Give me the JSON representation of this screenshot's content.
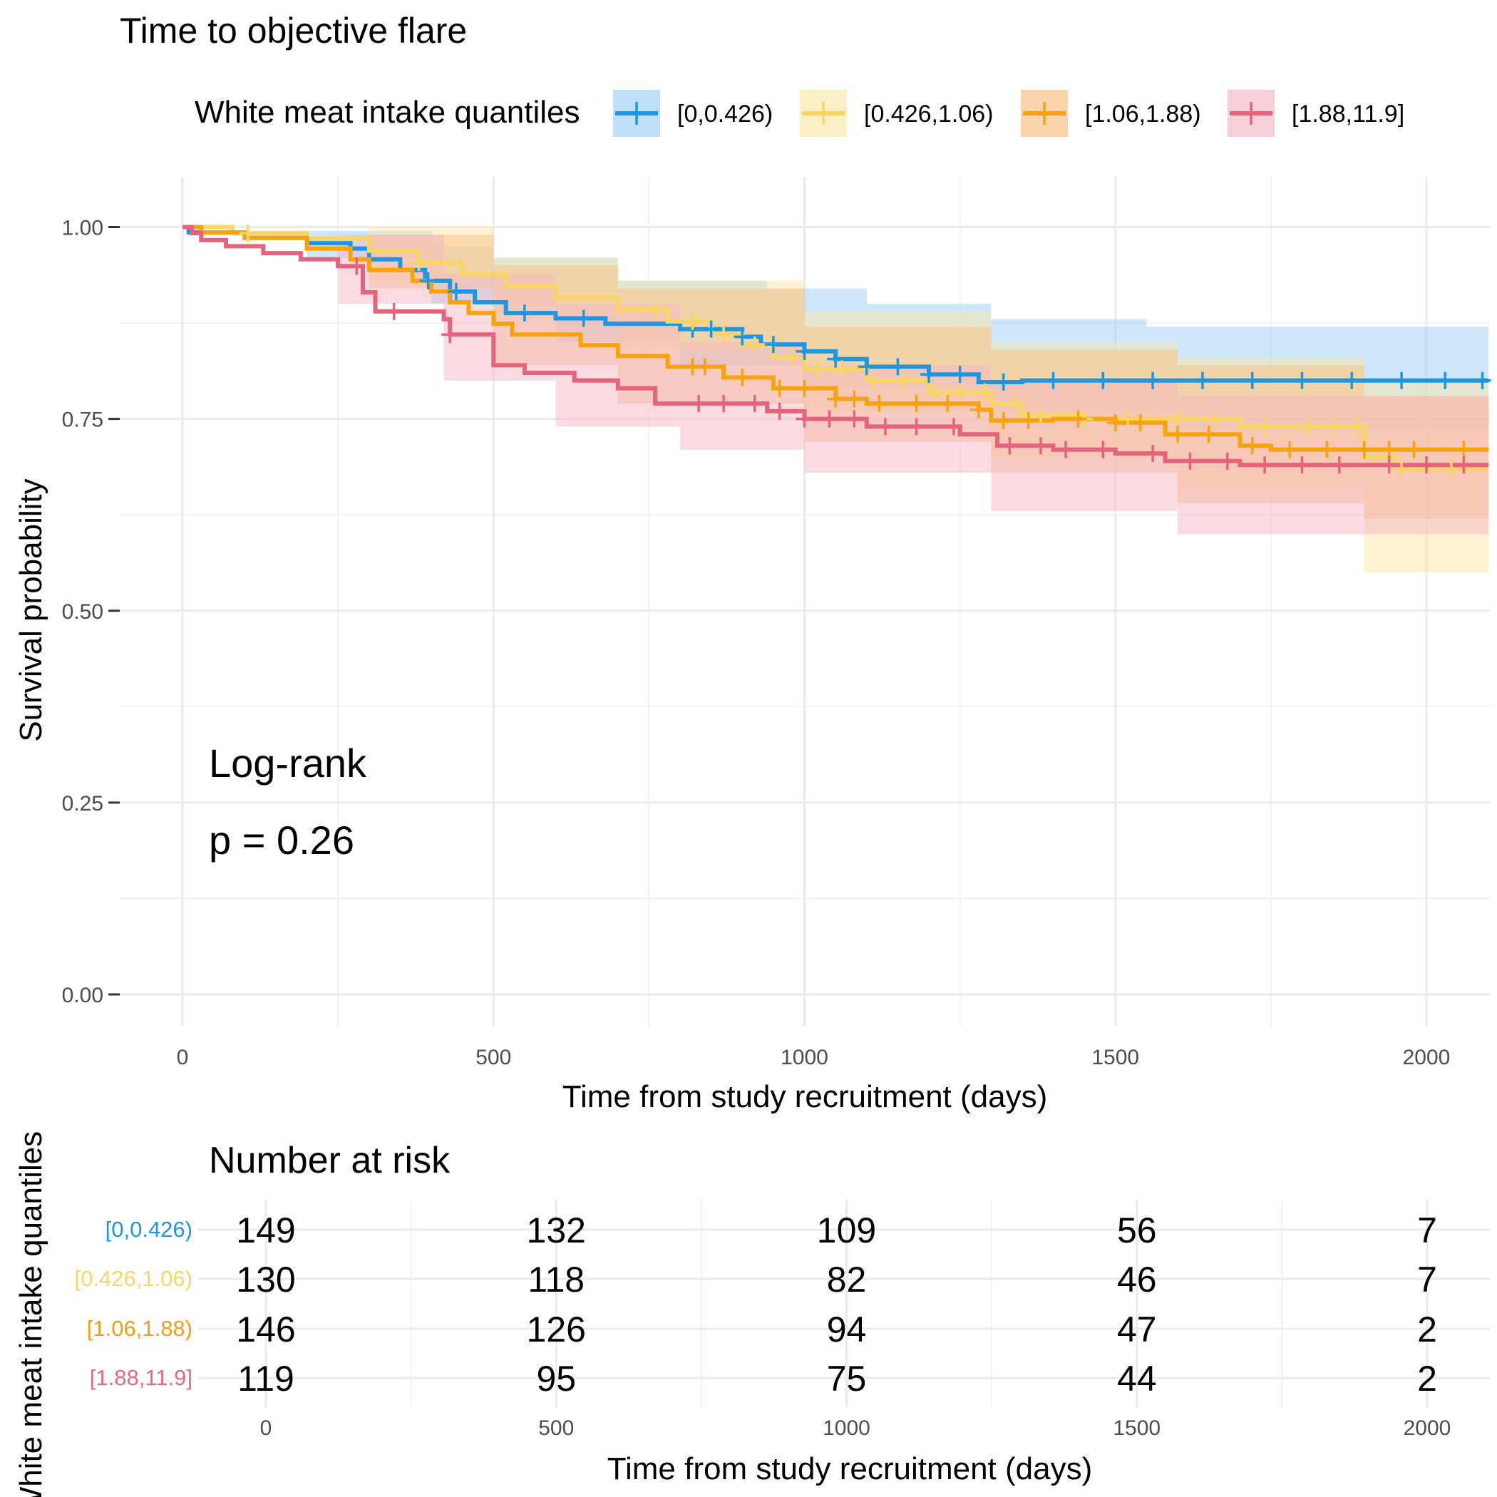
{
  "chart_data": [
    {
      "type": "line",
      "subtype": "kaplan-meier",
      "title": "Time to objective flare",
      "xlabel": "Time from study recruitment (days)",
      "ylabel": "Survival probability",
      "xlim": [
        -100,
        2100
      ],
      "ylim": [
        -0.04,
        1.04
      ],
      "x_ticks": [
        0,
        500,
        1000,
        1500,
        2000
      ],
      "y_ticks": [
        0.0,
        0.25,
        0.5,
        0.75,
        1.0
      ],
      "y_tick_labels": [
        "0.00",
        "0.25",
        "0.50",
        "0.75",
        "1.00"
      ],
      "grid": true,
      "legend": {
        "title": "White meat intake quantiles",
        "position": "top"
      },
      "annotation": {
        "line1": "Log-rank",
        "line2": "p = 0.26"
      },
      "series": [
        {
          "name": "[0,0.426)",
          "color": "#2196E0",
          "fill": "#9ccff2",
          "steps": [
            [
              0,
              1.0
            ],
            [
              10,
              0.993
            ],
            [
              100,
              0.986
            ],
            [
              200,
              0.979
            ],
            [
              270,
              0.972
            ],
            [
              300,
              0.958
            ],
            [
              350,
              0.944
            ],
            [
              390,
              0.93
            ],
            [
              430,
              0.916
            ],
            [
              470,
              0.902
            ],
            [
              520,
              0.888
            ],
            [
              600,
              0.881
            ],
            [
              680,
              0.874
            ],
            [
              800,
              0.867
            ],
            [
              900,
              0.857
            ],
            [
              930,
              0.847
            ],
            [
              1000,
              0.838
            ],
            [
              1050,
              0.828
            ],
            [
              1100,
              0.818
            ],
            [
              1200,
              0.808
            ],
            [
              1280,
              0.798
            ],
            [
              1350,
              0.8
            ],
            [
              2100,
              0.8
            ]
          ],
          "upper": [
            [
              0,
              1.0
            ],
            [
              200,
              0.995
            ],
            [
              400,
              0.975
            ],
            [
              500,
              0.96
            ],
            [
              700,
              0.93
            ],
            [
              940,
              0.92
            ],
            [
              1100,
              0.9
            ],
            [
              1300,
              0.88
            ],
            [
              1550,
              0.87
            ],
            [
              2100,
              0.87
            ]
          ],
          "lower": [
            [
              0,
              1.0
            ],
            [
              200,
              0.96
            ],
            [
              400,
              0.9
            ],
            [
              600,
              0.85
            ],
            [
              800,
              0.82
            ],
            [
              1000,
              0.79
            ],
            [
              1300,
              0.76
            ],
            [
              1600,
              0.735
            ],
            [
              2100,
              0.735
            ]
          ],
          "censor_x": [
            395,
            440,
            550,
            645,
            820,
            850,
            900,
            950,
            1000,
            1050,
            1100,
            1150,
            1200,
            1250,
            1320,
            1400,
            1480,
            1560,
            1640,
            1720,
            1800,
            1880,
            1960,
            2030,
            2090
          ]
        },
        {
          "name": "[0.426,1.06)",
          "color": "#F8D565",
          "fill": "#fbe7a6",
          "steps": [
            [
              0,
              1.0
            ],
            [
              80,
              0.992
            ],
            [
              200,
              0.985
            ],
            [
              300,
              0.969
            ],
            [
              380,
              0.954
            ],
            [
              450,
              0.938
            ],
            [
              520,
              0.923
            ],
            [
              600,
              0.908
            ],
            [
              700,
              0.892
            ],
            [
              780,
              0.877
            ],
            [
              850,
              0.861
            ],
            [
              900,
              0.846
            ],
            [
              950,
              0.83
            ],
            [
              1000,
              0.815
            ],
            [
              1100,
              0.8
            ],
            [
              1200,
              0.785
            ],
            [
              1300,
              0.77
            ],
            [
              1350,
              0.755
            ],
            [
              1450,
              0.75
            ],
            [
              1700,
              0.74
            ],
            [
              1900,
              0.7
            ],
            [
              1950,
              0.685
            ],
            [
              2100,
              0.685
            ]
          ],
          "upper": [
            [
              0,
              1.0
            ],
            [
              300,
              1.0
            ],
            [
              500,
              0.96
            ],
            [
              700,
              0.93
            ],
            [
              1000,
              0.89
            ],
            [
              1300,
              0.85
            ],
            [
              1600,
              0.83
            ],
            [
              1900,
              0.8
            ],
            [
              2100,
              0.8
            ]
          ],
          "lower": [
            [
              0,
              1.0
            ],
            [
              300,
              0.93
            ],
            [
              500,
              0.88
            ],
            [
              700,
              0.84
            ],
            [
              1000,
              0.76
            ],
            [
              1300,
              0.7
            ],
            [
              1600,
              0.66
            ],
            [
              1900,
              0.55
            ],
            [
              2100,
              0.55
            ]
          ],
          "censor_x": [
            105,
            380,
            760,
            820,
            870,
            920,
            980,
            1020,
            1060,
            1110,
            1160,
            1210,
            1250,
            1290,
            1340,
            1380,
            1450,
            1520,
            1600,
            1660,
            1740,
            1810,
            1850,
            1890,
            1960,
            2040
          ]
        },
        {
          "name": "[1.06,1.88)",
          "color": "#F7A30F",
          "fill": "#fbbf83",
          "steps": [
            [
              0,
              1.0
            ],
            [
              30,
              0.993
            ],
            [
              100,
              0.986
            ],
            [
              200,
              0.972
            ],
            [
              270,
              0.958
            ],
            [
              300,
              0.944
            ],
            [
              370,
              0.93
            ],
            [
              400,
              0.916
            ],
            [
              430,
              0.902
            ],
            [
              460,
              0.888
            ],
            [
              500,
              0.874
            ],
            [
              530,
              0.86
            ],
            [
              640,
              0.846
            ],
            [
              700,
              0.832
            ],
            [
              780,
              0.818
            ],
            [
              870,
              0.804
            ],
            [
              950,
              0.79
            ],
            [
              1050,
              0.776
            ],
            [
              1100,
              0.77
            ],
            [
              1280,
              0.762
            ],
            [
              1300,
              0.748
            ],
            [
              1400,
              0.75
            ],
            [
              1500,
              0.745
            ],
            [
              1580,
              0.73
            ],
            [
              1700,
              0.715
            ],
            [
              1750,
              0.71
            ],
            [
              2100,
              0.71
            ]
          ],
          "upper": [
            [
              0,
              1.0
            ],
            [
              300,
              0.99
            ],
            [
              500,
              0.95
            ],
            [
              700,
              0.92
            ],
            [
              1000,
              0.87
            ],
            [
              1300,
              0.84
            ],
            [
              1600,
              0.82
            ],
            [
              1900,
              0.78
            ],
            [
              2100,
              0.78
            ]
          ],
          "lower": [
            [
              0,
              1.0
            ],
            [
              300,
              0.92
            ],
            [
              500,
              0.82
            ],
            [
              700,
              0.77
            ],
            [
              1000,
              0.72
            ],
            [
              1300,
              0.68
            ],
            [
              1600,
              0.64
            ],
            [
              1900,
              0.62
            ],
            [
              2100,
              0.62
            ]
          ],
          "censor_x": [
            820,
            840,
            900,
            960,
            1000,
            1050,
            1080,
            1120,
            1180,
            1230,
            1280,
            1320,
            1360,
            1440,
            1500,
            1540,
            1600,
            1650,
            1720,
            1780,
            1840,
            1900,
            1940,
            1980,
            2060
          ]
        },
        {
          "name": "[1.88,11.9]",
          "color": "#E4647D",
          "fill": "#f4b7c3",
          "steps": [
            [
              0,
              1.0
            ],
            [
              15,
              0.992
            ],
            [
              30,
              0.983
            ],
            [
              70,
              0.975
            ],
            [
              130,
              0.966
            ],
            [
              190,
              0.958
            ],
            [
              250,
              0.949
            ],
            [
              290,
              0.915
            ],
            [
              310,
              0.89
            ],
            [
              420,
              0.88
            ],
            [
              430,
              0.86
            ],
            [
              500,
              0.82
            ],
            [
              550,
              0.81
            ],
            [
              630,
              0.8
            ],
            [
              700,
              0.79
            ],
            [
              760,
              0.77
            ],
            [
              940,
              0.76
            ],
            [
              1000,
              0.75
            ],
            [
              1100,
              0.74
            ],
            [
              1250,
              0.73
            ],
            [
              1310,
              0.715
            ],
            [
              1400,
              0.71
            ],
            [
              1500,
              0.705
            ],
            [
              1580,
              0.695
            ],
            [
              1700,
              0.69
            ],
            [
              2100,
              0.69
            ]
          ],
          "upper": [
            [
              0,
              1.0
            ],
            [
              250,
              0.99
            ],
            [
              420,
              0.94
            ],
            [
              600,
              0.9
            ],
            [
              800,
              0.85
            ],
            [
              1000,
              0.82
            ],
            [
              1300,
              0.8
            ],
            [
              1600,
              0.78
            ],
            [
              2100,
              0.78
            ]
          ],
          "lower": [
            [
              0,
              1.0
            ],
            [
              250,
              0.9
            ],
            [
              420,
              0.8
            ],
            [
              600,
              0.74
            ],
            [
              800,
              0.71
            ],
            [
              1000,
              0.68
            ],
            [
              1300,
              0.63
            ],
            [
              1600,
              0.6
            ],
            [
              2100,
              0.6
            ]
          ],
          "censor_x": [
            280,
            340,
            430,
            830,
            870,
            920,
            960,
            1000,
            1040,
            1080,
            1130,
            1180,
            1240,
            1330,
            1380,
            1420,
            1480,
            1560,
            1620,
            1680,
            1740,
            1800,
            1860,
            1940,
            2000,
            2060
          ]
        }
      ]
    },
    {
      "type": "table",
      "title": "Number at risk",
      "xlabel": "Time from study recruitment (days)",
      "ylabel": "White meat intake quantiles",
      "x_ticks": [
        0,
        500,
        1000,
        1500,
        2000
      ],
      "rows": [
        {
          "name": "[0,0.426)",
          "color": "#2196E0",
          "label_color": "#2196E0",
          "values": [
            149,
            132,
            109,
            56,
            7
          ]
        },
        {
          "name": "[0.426,1.06)",
          "color": "#F8D565",
          "label_color": "#F5D768",
          "values": [
            130,
            118,
            82,
            46,
            7
          ]
        },
        {
          "name": "[1.06,1.88)",
          "color": "#F7A30F",
          "label_color": "#F19C18",
          "values": [
            146,
            126,
            94,
            47,
            2
          ]
        },
        {
          "name": "[1.88,11.9]",
          "color": "#E4647D",
          "label_color": "#E56B82",
          "values": [
            119,
            95,
            75,
            44,
            2
          ]
        }
      ]
    }
  ]
}
